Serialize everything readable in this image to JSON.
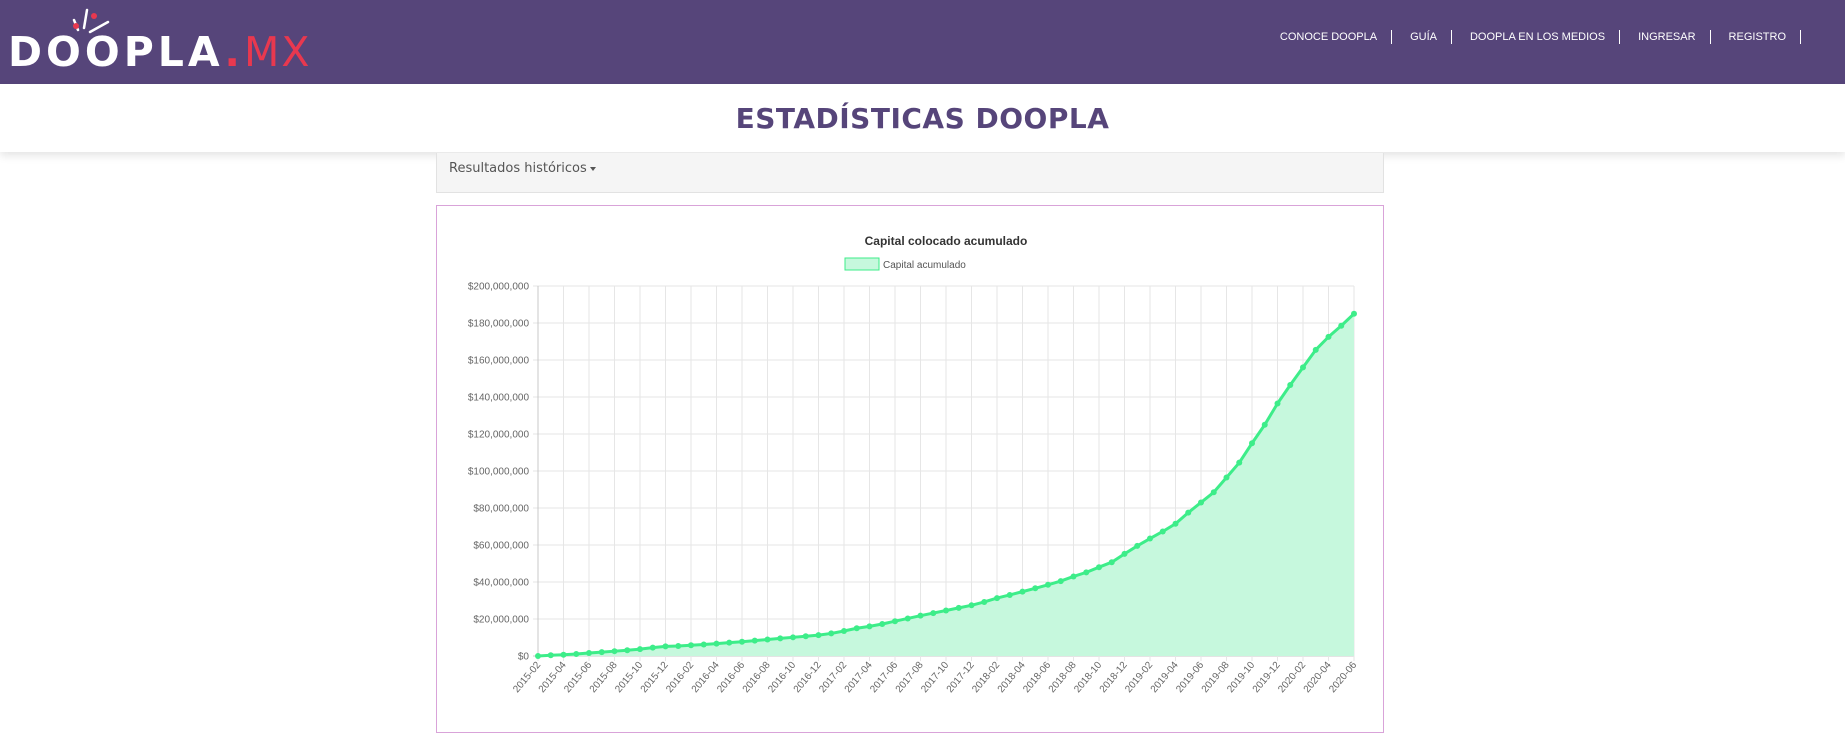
{
  "header": {
    "logo": {
      "text_main": "DOOPLA",
      "text_dot": ".",
      "text_suffix": "MX"
    },
    "nav": [
      {
        "label": "CONOCE DOOPLA"
      },
      {
        "label": "GUÍA"
      },
      {
        "label": "DOOPLA EN LOS MEDIOS"
      },
      {
        "label": "INGRESAR"
      },
      {
        "label": "REGISTRO"
      }
    ]
  },
  "page": {
    "title": "ESTADÍSTICAS DOOPLA"
  },
  "tabs": {
    "dropdown_label": "Resultados históricos"
  },
  "colors": {
    "header_bg": "#56457a",
    "accent_red": "#e8384f",
    "line": "#3ded89",
    "fill": "#c6f8dd"
  },
  "chart_data": {
    "type": "area",
    "title": "Capital colocado acumulado",
    "xlabel": "",
    "ylabel": "",
    "ylim": [
      0,
      200000000
    ],
    "grid": true,
    "legend": "top-center",
    "y_ticks": [
      "$0",
      "$20,000,000",
      "$40,000,000",
      "$60,000,000",
      "$80,000,000",
      "$100,000,000",
      "$120,000,000",
      "$140,000,000",
      "$160,000,000",
      "$180,000,000",
      "$200,000,000"
    ],
    "x_tick_labels": [
      "2015-02",
      "2015-04",
      "2015-06",
      "2015-08",
      "2015-10",
      "2015-12",
      "2016-02",
      "2016-04",
      "2016-06",
      "2016-08",
      "2016-10",
      "2016-12",
      "2017-02",
      "2017-04",
      "2017-06",
      "2017-08",
      "2017-10",
      "2017-12",
      "2018-02",
      "2018-04",
      "2018-06",
      "2018-08",
      "2018-10",
      "2018-12",
      "2019-02",
      "2019-04",
      "2019-06",
      "2019-08",
      "2019-10",
      "2019-12",
      "2020-02",
      "2020-04",
      "2020-06"
    ],
    "series": [
      {
        "name": "Capital acumulado",
        "x": [
          "2015-02",
          "2015-03",
          "2015-04",
          "2015-05",
          "2015-06",
          "2015-07",
          "2015-08",
          "2015-09",
          "2015-10",
          "2015-11",
          "2015-12",
          "2016-01",
          "2016-02",
          "2016-03",
          "2016-04",
          "2016-05",
          "2016-06",
          "2016-07",
          "2016-08",
          "2016-09",
          "2016-10",
          "2016-11",
          "2016-12",
          "2017-01",
          "2017-02",
          "2017-03",
          "2017-04",
          "2017-05",
          "2017-06",
          "2017-07",
          "2017-08",
          "2017-09",
          "2017-10",
          "2017-11",
          "2017-12",
          "2018-01",
          "2018-02",
          "2018-03",
          "2018-04",
          "2018-05",
          "2018-06",
          "2018-07",
          "2018-08",
          "2018-09",
          "2018-10",
          "2018-11",
          "2018-12",
          "2019-01",
          "2019-02",
          "2019-03",
          "2019-04",
          "2019-05",
          "2019-06",
          "2019-07",
          "2019-08",
          "2019-09",
          "2019-10",
          "2019-11",
          "2019-12",
          "2020-01",
          "2020-02",
          "2020-03",
          "2020-04",
          "2020-05",
          "2020-06"
        ],
        "values": [
          0,
          400000,
          700000,
          1100000,
          1600000,
          2100000,
          2600000,
          3100000,
          3700000,
          4500000,
          5200000,
          5400000,
          5800000,
          6200000,
          6700000,
          7200000,
          7700000,
          8300000,
          8900000,
          9500000,
          10100000,
          10700000,
          11300000,
          12200000,
          13500000,
          15000000,
          16000000,
          17300000,
          18800000,
          20300000,
          21800000,
          23200000,
          24600000,
          26000000,
          27400000,
          29200000,
          31300000,
          33000000,
          34800000,
          36600000,
          38500000,
          40500000,
          43000000,
          45200000,
          48000000,
          50700000,
          55200000,
          59500000,
          63500000,
          67300000,
          71500000,
          77500000,
          83000000,
          88500000,
          96500000,
          104500000,
          115000000,
          125000000,
          136500000,
          146500000,
          156000000,
          165500000,
          172500000,
          178500000,
          185000000
        ]
      }
    ]
  }
}
